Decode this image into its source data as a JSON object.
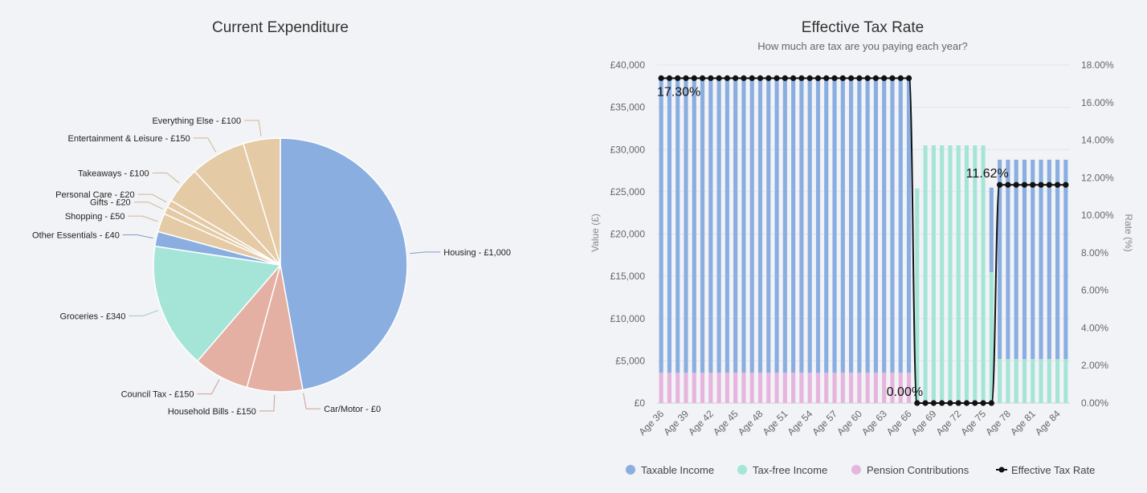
{
  "chart_data": [
    {
      "type": "pie",
      "title": "Current Expenditure",
      "slices": [
        {
          "label": "Housing - £1,000",
          "value": 1000,
          "color": "#8aaee0"
        },
        {
          "label": "Car/Motor - £0",
          "value": 0,
          "color": "#e3b0a3"
        },
        {
          "label": "Household Bills - £150",
          "value": 150,
          "color": "#e3b0a3"
        },
        {
          "label": "Council Tax - £150",
          "value": 150,
          "color": "#e3b0a3"
        },
        {
          "label": "Groceries - £340",
          "value": 340,
          "color": "#a5e5d8"
        },
        {
          "label": "Other Essentials - £40",
          "value": 40,
          "color": "#8aaee0"
        },
        {
          "label": "Shopping - £50",
          "value": 50,
          "color": "#e5caa6"
        },
        {
          "label": "Gifts - £20",
          "value": 20,
          "color": "#e5caa6"
        },
        {
          "label": "Personal Care - £20",
          "value": 20,
          "color": "#e5caa6"
        },
        {
          "label": "Takeaways - £100",
          "value": 100,
          "color": "#e5caa6"
        },
        {
          "label": "Entertainment & Leisure - £150",
          "value": 150,
          "color": "#e5caa6"
        },
        {
          "label": "Everything Else - £100",
          "value": 100,
          "color": "#e5caa6"
        }
      ]
    },
    {
      "type": "bar",
      "title": "Effective Tax Rate",
      "subtitle": "How much are tax are you paying each year?",
      "ylabel": "Value (£)",
      "y2label": "Rate (%)",
      "ylim": [
        0,
        40000
      ],
      "y2lim": [
        0,
        18
      ],
      "y_ticks": [
        "£0",
        "£5,000",
        "£10,000",
        "£15,000",
        "£20,000",
        "£25,000",
        "£30,000",
        "£35,000",
        "£40,000"
      ],
      "y2_ticks": [
        "0.00%",
        "2.00%",
        "4.00%",
        "6.00%",
        "8.00%",
        "10.00%",
        "12.00%",
        "14.00%",
        "16.00%",
        "18.00%"
      ],
      "age_start": 36,
      "age_end": 85,
      "x_tick_labels": [
        "Age 36",
        "Age 39",
        "Age 42",
        "Age 45",
        "Age 48",
        "Age 51",
        "Age 54",
        "Age 57",
        "Age 60",
        "Age 63",
        "Age 66",
        "Age 69",
        "Age 72",
        "Age 75",
        "Age 78",
        "Age 81",
        "Age 84"
      ],
      "segments": [
        {
          "from_age": 36,
          "to_age": 66,
          "taxable": 34800,
          "tax_free": 0,
          "pension": 3600,
          "rate": 17.3
        },
        {
          "from_age": 67,
          "to_age": 67,
          "taxable": 0,
          "tax_free": 25400,
          "pension": 0,
          "rate": 0
        },
        {
          "from_age": 68,
          "to_age": 75,
          "taxable": 0,
          "tax_free": 30500,
          "pension": 0,
          "rate": 0
        },
        {
          "from_age": 76,
          "to_age": 76,
          "taxable": 10000,
          "tax_free": 15500,
          "pension": 0,
          "rate": 0
        },
        {
          "from_age": 77,
          "to_age": 85,
          "taxable": 23600,
          "tax_free": 5200,
          "pension": 0,
          "rate": 11.62
        }
      ],
      "data_labels": [
        {
          "text": "17.30%",
          "age": 36,
          "rate": 17.3
        },
        {
          "text": "0.00%",
          "age": 67,
          "rate": 0
        },
        {
          "text": "11.62%",
          "age": 77,
          "rate": 11.62
        }
      ],
      "series": [
        {
          "name": "Taxable Income",
          "color": "#8aaee0"
        },
        {
          "name": "Tax-free Income",
          "color": "#a5e5d8"
        },
        {
          "name": "Pension Contributions",
          "color": "#e6b5de"
        },
        {
          "name": "Effective Tax Rate",
          "color": "#111111"
        }
      ],
      "legend": "bottom"
    }
  ]
}
